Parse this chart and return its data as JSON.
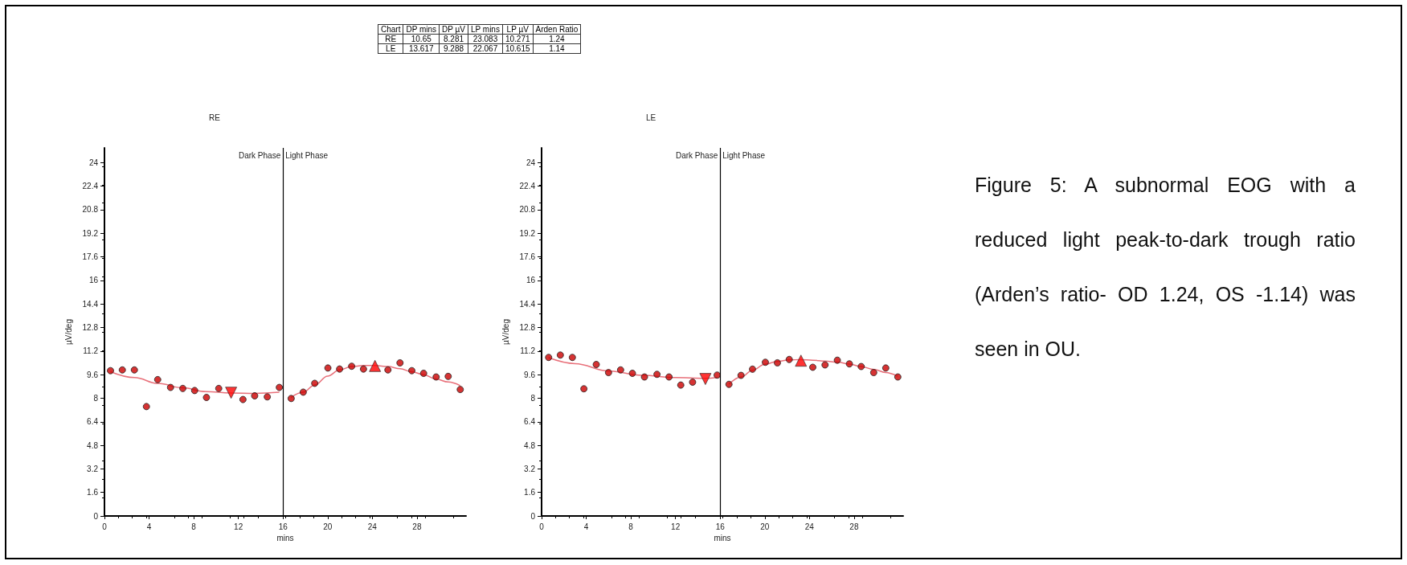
{
  "chart_data": [
    {
      "type": "scatter",
      "title": "RE",
      "xlabel": "mins",
      "ylabel": "µV/deg",
      "xlim": [
        0,
        32.4
      ],
      "xticks": [
        0,
        4,
        8,
        12,
        16,
        20,
        24,
        28
      ],
      "ylim": [
        0,
        25
      ],
      "yticks": [
        0,
        1.6,
        3.2,
        4.8,
        6.4,
        8,
        9.6,
        11.2,
        12.8,
        14.4,
        16,
        17.6,
        19.2,
        20.8,
        22.4,
        24
      ],
      "ref_lines": [
        {
          "axis": "x",
          "value": 16,
          "color": "#000000"
        }
      ],
      "annotations": [
        "Dark Phase",
        "Light Phase"
      ],
      "series": [
        {
          "type": "scatter",
          "marker": "circle",
          "color": "#cc0000",
          "x": [
            0.54,
            1.6,
            2.68,
            3.76,
            4.77,
            5.92,
            7.02,
            8.08,
            9.14,
            10.24,
            12.41,
            13.46,
            14.59,
            15.67,
            16.73,
            17.81,
            18.84,
            20.02,
            21.07,
            22.15,
            23.21,
            25.4,
            26.48,
            27.54,
            28.6,
            29.72,
            30.8,
            31.88
          ],
          "values": [
            9.87,
            9.92,
            9.92,
            7.43,
            9.26,
            8.73,
            8.66,
            8.52,
            8.05,
            8.66,
            7.91,
            8.16,
            8.09,
            8.73,
            7.98,
            8.41,
            9.01,
            10.05,
            9.98,
            10.17,
            9.98,
            9.92,
            10.4,
            9.87,
            9.69,
            9.44,
            9.48,
            8.59
          ]
        },
        {
          "type": "line",
          "marker": "none",
          "color": "#e8707a",
          "x": [
            0.54,
            2.7,
            4.8,
            7,
            9.1,
            11.3,
            13.5,
            15.67
          ],
          "values": [
            9.8,
            9.4,
            9.0,
            8.7,
            8.45,
            8.35,
            8.33,
            8.4
          ]
        },
        {
          "type": "line",
          "marker": "none",
          "color": "#e8707a",
          "x": [
            16.73,
            17.8,
            18.84,
            20,
            21.07,
            22.15,
            23.2,
            24.24,
            25.4,
            26.5,
            27.5,
            28.6,
            29.7,
            30.8,
            31.88
          ],
          "values": [
            8.05,
            8.4,
            8.9,
            9.5,
            9.92,
            10.15,
            10.22,
            10.22,
            10.15,
            10.0,
            9.8,
            9.6,
            9.3,
            9.1,
            8.85
          ]
        },
        {
          "type": "scatter",
          "marker": "triangle-down",
          "color": "#ff0000",
          "x": [
            11.35
          ],
          "values": [
            8.37
          ]
        },
        {
          "type": "scatter",
          "marker": "triangle",
          "color": "#ff0000",
          "x": [
            24.24
          ],
          "values": [
            10.19
          ]
        }
      ]
    },
    {
      "type": "scatter",
      "title": "LE",
      "xlabel": "mins",
      "ylabel": "µV/deg",
      "xlim": [
        0,
        32.4
      ],
      "xticks": [
        0,
        4,
        8,
        12,
        16,
        20,
        24,
        28
      ],
      "ylim": [
        0,
        25
      ],
      "yticks": [
        0,
        1.6,
        3.2,
        4.8,
        6.4,
        8,
        9.6,
        11.2,
        12.8,
        14.4,
        16,
        17.6,
        19.2,
        20.8,
        22.4,
        24
      ],
      "ref_lines": [
        {
          "axis": "x",
          "value": 16,
          "color": "#000000"
        }
      ],
      "annotations": [
        "Dark Phase",
        "Light Phase"
      ],
      "series": [
        {
          "type": "scatter",
          "marker": "circle",
          "color": "#cc0000",
          "x": [
            0.63,
            1.68,
            2.76,
            3.79,
            4.9,
            6.0,
            7.08,
            8.14,
            9.22,
            10.34,
            11.42,
            12.47,
            13.53,
            15.73,
            16.79,
            17.87,
            18.9,
            20.05,
            21.13,
            22.19,
            24.3,
            25.4,
            26.5,
            27.58,
            28.64,
            29.76,
            30.84,
            31.92
          ],
          "values": [
            10.77,
            10.93,
            10.77,
            8.64,
            10.29,
            9.74,
            9.92,
            9.69,
            9.44,
            9.62,
            9.44,
            8.89,
            9.09,
            9.57,
            8.94,
            9.55,
            9.97,
            10.44,
            10.4,
            10.63,
            10.1,
            10.26,
            10.58,
            10.33,
            10.15,
            9.74,
            10.05,
            9.44
          ]
        },
        {
          "type": "line",
          "marker": "none",
          "color": "#e8707a",
          "x": [
            0.63,
            3,
            6,
            9,
            12,
            14.7,
            15.73
          ],
          "values": [
            10.75,
            10.35,
            9.85,
            9.55,
            9.4,
            9.35,
            9.4
          ]
        },
        {
          "type": "line",
          "marker": "none",
          "color": "#e8707a",
          "x": [
            16.79,
            17.9,
            18.9,
            20,
            21.1,
            22.2,
            23.2,
            24.3,
            25.4,
            26.5,
            27.6,
            28.6,
            29.8,
            30.8,
            31.9
          ],
          "values": [
            8.95,
            9.45,
            9.9,
            10.3,
            10.5,
            10.6,
            10.62,
            10.58,
            10.52,
            10.45,
            10.32,
            10.15,
            9.95,
            9.75,
            9.5
          ]
        },
        {
          "type": "scatter",
          "marker": "triangle-down",
          "color": "#ff0000",
          "x": [
            14.68
          ],
          "values": [
            9.3
          ]
        },
        {
          "type": "scatter",
          "marker": "triangle",
          "color": "#ff0000",
          "x": [
            23.24
          ],
          "values": [
            10.55
          ]
        }
      ]
    },
    {
      "type": "other",
      "annotations": [
        "Chart",
        "DP mins",
        "DP µV",
        "LP mins",
        "LP µV",
        "Arden Ratio",
        "RE",
        "10.65",
        "8.281",
        "23.083",
        "10.271",
        "1.24",
        "LE",
        "13.617",
        "9.288",
        "22.067",
        "10.615",
        "1.14"
      ]
    },
    {
      "type": "other",
      "annotations": [
        "Figure 5: A subnormal EOG with a reduced light peak-to-dark trough ratio (Arden’s ratio- OD 1.24, OS -1.14) was seen in OU."
      ]
    }
  ]
}
